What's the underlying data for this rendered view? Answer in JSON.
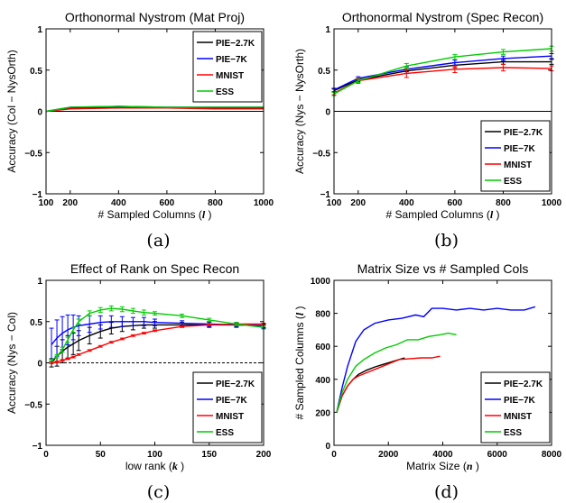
{
  "chart_data": [
    {
      "panel": "(a)",
      "type": "line",
      "title": "Orthonormal Nystrom (Mat Proj)",
      "xlabel": "# Sampled Columns (",
      "xlabel_var": "l",
      "ylabel": "Accuracy (Col − NysOrth)",
      "xlim": [
        100,
        1000
      ],
      "ylim": [
        -1,
        1
      ],
      "xticks": [
        100,
        200,
        400,
        600,
        800,
        1000
      ],
      "yticks": [
        -1,
        -0.5,
        0,
        0.5,
        1
      ],
      "ytick_labels": [
        "−1",
        "−0.5",
        "0",
        "0.5",
        "1"
      ],
      "zero_line": true,
      "legend_position": "top-right",
      "series": [
        {
          "name": "PIE−2.7K",
          "color": "#000000",
          "x": [
            100,
            200,
            400,
            600,
            800,
            1000
          ],
          "values": [
            0.0,
            0.04,
            0.05,
            0.04,
            0.04,
            0.04
          ]
        },
        {
          "name": "PIE−7K",
          "color": "#0000ff",
          "x": [
            100,
            200,
            400,
            600,
            800,
            1000
          ],
          "values": [
            0.0,
            0.05,
            0.06,
            0.05,
            0.05,
            0.05
          ]
        },
        {
          "name": "MNIST",
          "color": "#ff0000",
          "x": [
            100,
            200,
            400,
            600,
            800,
            1000
          ],
          "values": [
            0.0,
            0.03,
            0.04,
            0.04,
            0.03,
            0.03
          ]
        },
        {
          "name": "ESS",
          "color": "#00cc00",
          "x": [
            100,
            200,
            400,
            600,
            800,
            1000
          ],
          "values": [
            0.0,
            0.05,
            0.06,
            0.05,
            0.05,
            0.05
          ]
        }
      ]
    },
    {
      "panel": "(b)",
      "type": "line",
      "title": "Orthonormal Nystrom (Spec Recon)",
      "xlabel": "# Sampled Columns (",
      "xlabel_var": "l",
      "ylabel": "Accuracy (Nys − NysOrth)",
      "xlim": [
        100,
        1000
      ],
      "ylim": [
        -1,
        1
      ],
      "xticks": [
        100,
        200,
        400,
        600,
        800,
        1000
      ],
      "yticks": [
        -1,
        -0.5,
        0,
        0.5,
        1
      ],
      "ytick_labels": [
        "−1",
        "−0.5",
        "0",
        "0.5",
        "1"
      ],
      "zero_line": true,
      "legend_position": "bottom-right",
      "series": [
        {
          "name": "PIE−2.7K",
          "color": "#000000",
          "x": [
            100,
            200,
            400,
            600,
            800,
            1000
          ],
          "values": [
            0.25,
            0.38,
            0.49,
            0.56,
            0.6,
            0.6
          ],
          "err": [
            0.02,
            0.02,
            0.03,
            0.03,
            0.03,
            0.03
          ]
        },
        {
          "name": "PIE−7K",
          "color": "#0000ff",
          "x": [
            100,
            200,
            400,
            600,
            800,
            1000
          ],
          "values": [
            0.26,
            0.4,
            0.51,
            0.59,
            0.64,
            0.67
          ],
          "err": [
            0.02,
            0.02,
            0.03,
            0.03,
            0.03,
            0.03
          ]
        },
        {
          "name": "MNIST",
          "color": "#ff0000",
          "x": [
            100,
            200,
            400,
            600,
            800,
            1000
          ],
          "values": [
            0.22,
            0.37,
            0.46,
            0.51,
            0.53,
            0.52
          ],
          "err": [
            0.02,
            0.03,
            0.05,
            0.04,
            0.04,
            0.03
          ]
        },
        {
          "name": "ESS",
          "color": "#00cc00",
          "x": [
            100,
            200,
            400,
            600,
            800,
            1000
          ],
          "values": [
            0.21,
            0.37,
            0.55,
            0.66,
            0.72,
            0.76
          ],
          "err": [
            0.02,
            0.02,
            0.03,
            0.03,
            0.03,
            0.03
          ]
        }
      ]
    },
    {
      "panel": "(c)",
      "type": "line",
      "title": "Effect of Rank on Spec Recon",
      "xlabel": "low rank (",
      "xlabel_var": "k",
      "ylabel": "Accuracy (Nys − Col)",
      "xlim": [
        0,
        200
      ],
      "ylim": [
        -1,
        1
      ],
      "xticks": [
        0,
        50,
        100,
        150,
        200
      ],
      "yticks": [
        -1,
        -0.5,
        0,
        0.5,
        1
      ],
      "ytick_labels": [
        "−1",
        "−0.5",
        "0",
        "0.5",
        "1"
      ],
      "zero_line": true,
      "zero_line_dashed": true,
      "legend_position": "bottom-right",
      "series": [
        {
          "name": "PIE−2.7K",
          "color": "#000000",
          "x": [
            5,
            10,
            15,
            20,
            25,
            30,
            40,
            50,
            60,
            70,
            80,
            90,
            100,
            125,
            150,
            175,
            200
          ],
          "values": [
            0.0,
            0.08,
            0.14,
            0.19,
            0.23,
            0.27,
            0.33,
            0.38,
            0.42,
            0.44,
            0.45,
            0.46,
            0.46,
            0.46,
            0.46,
            0.46,
            0.45
          ],
          "err": [
            0.05,
            0.12,
            0.14,
            0.14,
            0.13,
            0.12,
            0.1,
            0.08,
            0.07,
            0.06,
            0.05,
            0.04,
            0.04,
            0.03,
            0.03,
            0.02,
            0.02
          ]
        },
        {
          "name": "PIE−7K",
          "color": "#0000ff",
          "x": [
            5,
            10,
            15,
            20,
            25,
            30,
            40,
            50,
            60,
            70,
            80,
            90,
            100,
            125,
            150,
            175,
            200
          ],
          "values": [
            0.22,
            0.3,
            0.36,
            0.4,
            0.43,
            0.45,
            0.47,
            0.49,
            0.5,
            0.5,
            0.5,
            0.5,
            0.49,
            0.48,
            0.47,
            0.46,
            0.45
          ],
          "err": [
            0.2,
            0.22,
            0.2,
            0.18,
            0.15,
            0.12,
            0.1,
            0.08,
            0.07,
            0.06,
            0.05,
            0.05,
            0.04,
            0.03,
            0.03,
            0.03,
            0.03
          ]
        },
        {
          "name": "MNIST",
          "color": "#ff0000",
          "x": [
            5,
            10,
            15,
            20,
            25,
            30,
            40,
            50,
            60,
            70,
            80,
            90,
            100,
            125,
            150,
            175,
            200
          ],
          "values": [
            0.0,
            0.01,
            0.03,
            0.05,
            0.07,
            0.1,
            0.15,
            0.2,
            0.25,
            0.29,
            0.33,
            0.36,
            0.39,
            0.44,
            0.46,
            0.47,
            0.47
          ],
          "err": [
            0.01,
            0.01,
            0.01,
            0.01,
            0.01,
            0.01,
            0.01,
            0.01,
            0.01,
            0.01,
            0.01,
            0.01,
            0.01,
            0.01,
            0.01,
            0.01,
            0.01
          ]
        },
        {
          "name": "ESS",
          "color": "#00cc00",
          "x": [
            5,
            10,
            15,
            20,
            25,
            30,
            40,
            50,
            60,
            70,
            80,
            90,
            100,
            125,
            150,
            175,
            200
          ],
          "values": [
            0.03,
            0.08,
            0.16,
            0.28,
            0.4,
            0.5,
            0.6,
            0.64,
            0.66,
            0.65,
            0.63,
            0.61,
            0.6,
            0.57,
            0.52,
            0.47,
            0.43
          ],
          "err": [
            0.01,
            0.02,
            0.03,
            0.03,
            0.03,
            0.03,
            0.03,
            0.03,
            0.03,
            0.03,
            0.03,
            0.03,
            0.02,
            0.02,
            0.02,
            0.02,
            0.02
          ]
        }
      ]
    },
    {
      "panel": "(d)",
      "type": "line",
      "title": "Matrix Size vs # Sampled Cols",
      "xlabel": "Matrix Size (",
      "xlabel_var": "n",
      "ylabel": "# Sampled Columns (",
      "ylabel_var": "l",
      "xlim": [
        0,
        8000
      ],
      "ylim": [
        0,
        1000
      ],
      "xticks": [
        0,
        2000,
        4000,
        6000,
        8000
      ],
      "yticks": [
        0,
        200,
        400,
        600,
        800,
        1000
      ],
      "ytick_labels": [
        "0",
        "200",
        "400",
        "600",
        "800",
        "1000"
      ],
      "zero_line": false,
      "legend_position": "bottom-right",
      "series": [
        {
          "name": "PIE−2.7K",
          "color": "#000000",
          "x": [
            100,
            300,
            500,
            700,
            900,
            1200,
            1500,
            1800,
            2100,
            2400,
            2600
          ],
          "values": [
            200,
            300,
            360,
            400,
            430,
            455,
            475,
            490,
            505,
            520,
            530
          ]
        },
        {
          "name": "PIE−7K",
          "color": "#0000ff",
          "x": [
            100,
            300,
            500,
            800,
            1100,
            1500,
            2000,
            2500,
            3000,
            3300,
            3600,
            4000,
            4500,
            5000,
            5500,
            6000,
            6500,
            7000,
            7400
          ],
          "values": [
            200,
            350,
            480,
            630,
            700,
            740,
            760,
            770,
            790,
            780,
            830,
            830,
            820,
            830,
            820,
            830,
            820,
            820,
            840
          ]
        },
        {
          "name": "MNIST",
          "color": "#ff0000",
          "x": [
            100,
            300,
            500,
            700,
            900,
            1200,
            1500,
            1800,
            2100,
            2400,
            2800,
            3200,
            3600,
            3900
          ],
          "values": [
            200,
            300,
            360,
            400,
            420,
            440,
            460,
            480,
            500,
            520,
            525,
            530,
            530,
            540
          ]
        },
        {
          "name": "ESS",
          "color": "#00cc00",
          "x": [
            100,
            300,
            500,
            800,
            1100,
            1500,
            1900,
            2300,
            2700,
            3100,
            3500,
            3900,
            4200,
            4500
          ],
          "values": [
            200,
            320,
            400,
            480,
            520,
            560,
            590,
            610,
            640,
            640,
            660,
            670,
            680,
            670
          ]
        }
      ]
    }
  ]
}
